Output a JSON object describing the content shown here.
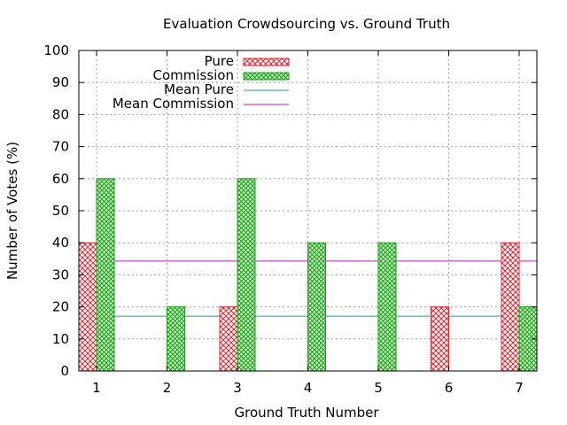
{
  "chart_data": {
    "type": "bar",
    "title": "Evaluation Crowdsourcing vs. Ground Truth",
    "xlabel": "Ground Truth Number",
    "ylabel": "Number of Votes (%)",
    "ylim": [
      0,
      100
    ],
    "yticks": [
      0,
      10,
      20,
      30,
      40,
      50,
      60,
      70,
      80,
      90,
      100
    ],
    "categories": [
      "1",
      "2",
      "3",
      "4",
      "5",
      "6",
      "7"
    ],
    "grid": true,
    "legend_position": "top-left",
    "series": [
      {
        "name": "Pure",
        "values": [
          40,
          0,
          20,
          0,
          0,
          20,
          40
        ],
        "color": "#e8202a",
        "pattern": "crosshatch"
      },
      {
        "name": "Commission",
        "values": [
          60,
          20,
          60,
          40,
          40,
          0,
          20
        ],
        "color": "#1a9e1a",
        "pattern": "crosshatch"
      }
    ],
    "reference_lines": [
      {
        "name": "Mean Pure",
        "value": 17.1,
        "color": "#1a9aaa"
      },
      {
        "name": "Mean Commission",
        "value": 34.3,
        "color": "#b020b0"
      }
    ]
  }
}
